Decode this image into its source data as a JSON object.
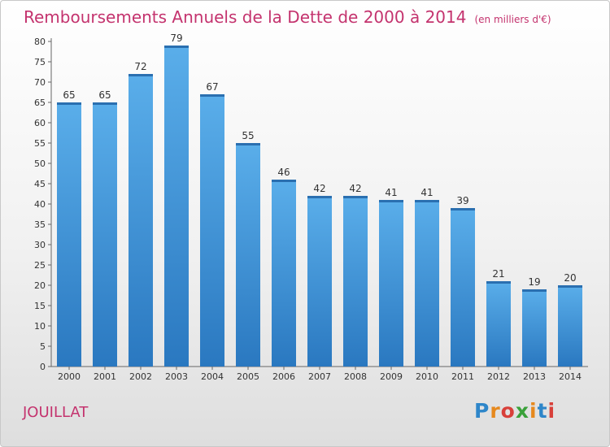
{
  "title": "Remboursements Annuels de la Dette de 2000 à 2014",
  "subtitle": "(en milliers d'€)",
  "city": "JOUILLAT",
  "logo": {
    "letters": [
      "P",
      "r",
      "o",
      "x",
      "i",
      "t",
      "i"
    ],
    "colors": [
      "#2e86c9",
      "#e6891e",
      "#d8403a",
      "#3aa13a",
      "#e6891e",
      "#2e86c9",
      "#d8403a"
    ]
  },
  "colors": {
    "bar": "#4a9fe0",
    "text_accent": "#c4336e"
  },
  "chart_data": {
    "type": "bar",
    "title": "Remboursements Annuels de la Dette de 2000 à 2014",
    "subtitle": "(en milliers d'€)",
    "xlabel": "",
    "ylabel": "",
    "categories": [
      "2000",
      "2001",
      "2002",
      "2003",
      "2004",
      "2005",
      "2006",
      "2007",
      "2008",
      "2009",
      "2010",
      "2011",
      "2012",
      "2013",
      "2014"
    ],
    "values": [
      65,
      65,
      72,
      79,
      67,
      55,
      46,
      42,
      42,
      41,
      41,
      39,
      21,
      19,
      20
    ],
    "ylim": [
      0,
      80
    ],
    "yticks": [
      0,
      5,
      10,
      15,
      20,
      25,
      30,
      35,
      40,
      45,
      50,
      55,
      60,
      65,
      70,
      75,
      80
    ],
    "grid": false,
    "legend": "none"
  }
}
